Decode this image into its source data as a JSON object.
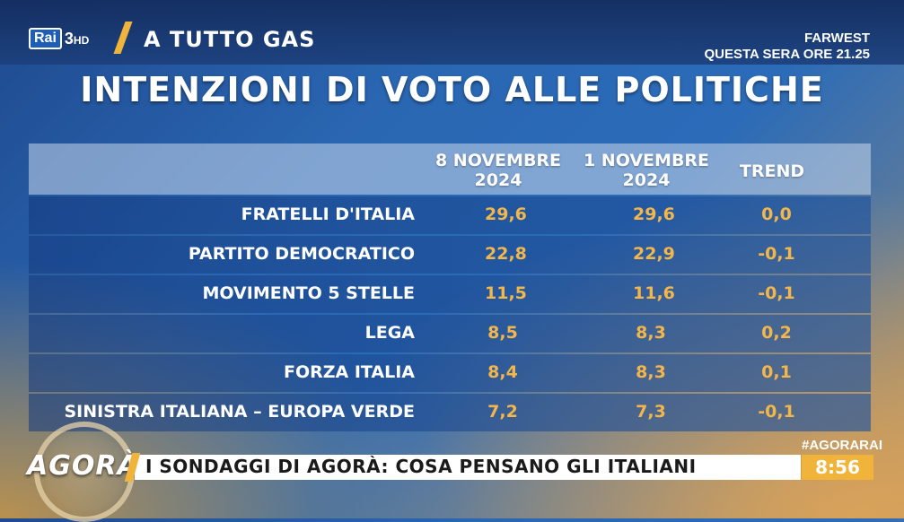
{
  "channel": {
    "logo_text": "Rai",
    "channel_number": "3",
    "hd": "HD"
  },
  "show": {
    "title": "A TUTTO GAS"
  },
  "promo": {
    "line1": "FARWEST",
    "line2": "QUESTA SERA ORE 21.25"
  },
  "main_title": "INTENZIONI DI VOTO ALLE POLITICHE",
  "table": {
    "columns": [
      {
        "line1": "8 NOVEMBRE",
        "line2": "2024"
      },
      {
        "line1": "1 NOVEMBRE",
        "line2": "2024"
      },
      {
        "line1": "TREND",
        "line2": ""
      }
    ],
    "rows": [
      {
        "party": "FRATELLI D'ITALIA",
        "nov8": "29,6",
        "nov1": "29,6",
        "trend": "0,0"
      },
      {
        "party": "PARTITO DEMOCRATICO",
        "nov8": "22,8",
        "nov1": "22,9",
        "trend": "-0,1"
      },
      {
        "party": "MOVIMENTO 5 STELLE",
        "nov8": "11,5",
        "nov1": "11,6",
        "trend": "-0,1"
      },
      {
        "party": "LEGA",
        "nov8": "8,5",
        "nov1": "8,3",
        "trend": "0,2"
      },
      {
        "party": "FORZA ITALIA",
        "nov8": "8,4",
        "nov1": "8,3",
        "trend": "0,1"
      },
      {
        "party": "SINISTRA ITALIANA – EUROPA VERDE",
        "nov8": "7,2",
        "nov1": "7,3",
        "trend": "-0,1"
      }
    ]
  },
  "ticker": {
    "logo": "AGORÀ",
    "text": "I SONDAGGI DI AGORÀ: COSA PENSANO GLI ITALIANI",
    "hashtag": "#AGORARAI",
    "time": "8:56"
  },
  "colors": {
    "accent": "#f0b43a",
    "value": "#f3b64a",
    "bg_blue": "#2a67b3"
  }
}
